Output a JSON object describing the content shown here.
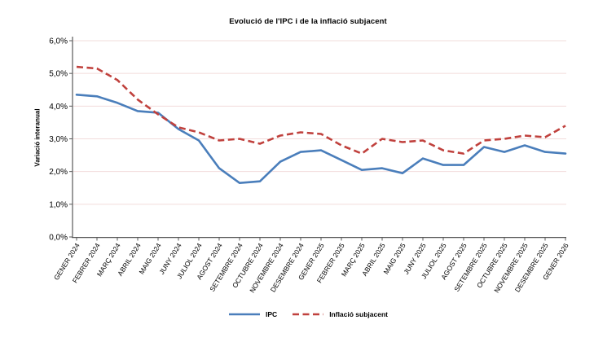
{
  "page": {
    "background": "#ffffff"
  },
  "chart_data": {
    "type": "line",
    "title": "Evolució de l'IPC i de la inflació subjacent",
    "ylabel": "Variació interanual",
    "xlabel": "",
    "ylim": [
      0,
      6
    ],
    "ytick_step": 1,
    "ytick_labels": [
      "0,0%",
      "1,0%",
      "2,0%",
      "3,0%",
      "4,0%",
      "5,0%",
      "6,0%"
    ],
    "grid": true,
    "legend_position": "bottom",
    "grid_color": "#f2dcdb",
    "axis_color": "#595959",
    "text_color": "#000000",
    "categories": [
      "GENER 2024",
      "FEBRER 2024",
      "MARÇ 2024",
      "ABRIL 2024",
      "MAIG 2024",
      "JUNY 2024",
      "JULIOL 2024",
      "AGOST 2024",
      "SETEMBRE 2024",
      "OCTUBRE 2024",
      "NOVEMBRE 2024",
      "DESEMBRE 2024",
      "GENER 2025",
      "FEBRER 2025",
      "MARÇ 2025",
      "ABRIL 2025",
      "MAIG 2025",
      "JUNY 2025",
      "JULIOL 2025",
      "AGOST 2025",
      "SETEMBRE 2025",
      "OCTUBRE 2025",
      "NOVEMBRE 2025",
      "DESEMBRE 2025",
      "GENER 2026"
    ],
    "series": [
      {
        "name": "IPC",
        "color": "#4a7ebb",
        "style": "solid",
        "values": [
          4.35,
          4.3,
          4.1,
          3.85,
          3.8,
          3.3,
          2.95,
          2.1,
          1.65,
          1.7,
          2.3,
          2.6,
          2.65,
          2.35,
          2.05,
          2.1,
          1.95,
          2.4,
          2.2,
          2.2,
          2.75,
          2.6,
          2.8,
          2.6,
          2.55
        ]
      },
      {
        "name": "Inflació subjacent",
        "color": "#c0413d",
        "style": "dashed",
        "values": [
          5.2,
          5.15,
          4.8,
          4.2,
          3.75,
          3.35,
          3.2,
          2.95,
          3.0,
          2.85,
          3.1,
          3.2,
          3.15,
          2.8,
          2.55,
          3.0,
          2.9,
          2.95,
          2.65,
          2.55,
          2.95,
          3.0,
          3.1,
          3.05,
          3.4
        ]
      }
    ]
  }
}
